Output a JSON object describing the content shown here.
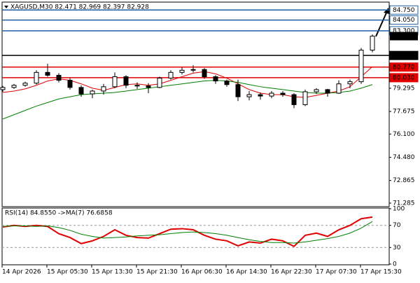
{
  "chart_data": [
    {
      "type": "candlestick",
      "title": "XAGUSD,M30  82.471 82.969 82.397 82.928",
      "categories": [
        "14 Apr 2026",
        null,
        null,
        null,
        "15 Apr 05:30",
        null,
        null,
        null,
        "15 Apr 13:30",
        null,
        null,
        null,
        "15 Apr 21:30",
        null,
        null,
        null,
        "16 Apr 06:30",
        null,
        null,
        null,
        "16 Apr 14:30",
        null,
        null,
        null,
        "16 Apr 22:30",
        null,
        null,
        null,
        "17 Apr 07:30",
        null,
        null,
        null,
        "17 Apr 15:30",
        null
      ],
      "ohlc": [
        [
          79.2,
          79.45,
          79.05,
          79.35
        ],
        [
          79.35,
          79.6,
          79.25,
          79.5
        ],
        [
          79.5,
          79.75,
          79.4,
          79.65
        ],
        [
          79.65,
          80.55,
          79.55,
          80.4
        ],
        [
          80.4,
          81.0,
          80.1,
          80.2
        ],
        [
          80.2,
          80.35,
          79.7,
          79.85
        ],
        [
          79.85,
          80.0,
          79.2,
          79.35
        ],
        [
          79.35,
          79.5,
          78.7,
          78.9
        ],
        [
          78.9,
          79.2,
          78.6,
          79.1
        ],
        [
          79.1,
          79.6,
          78.85,
          79.4
        ],
        [
          79.4,
          80.4,
          79.3,
          80.1
        ],
        [
          80.1,
          80.2,
          79.3,
          79.5
        ],
        [
          79.5,
          79.7,
          79.25,
          79.45
        ],
        [
          79.45,
          79.65,
          78.95,
          79.35
        ],
        [
          79.35,
          80.1,
          79.3,
          80.0
        ],
        [
          80.0,
          80.55,
          79.9,
          80.4
        ],
        [
          80.4,
          80.75,
          80.25,
          80.55
        ],
        [
          80.55,
          80.9,
          80.4,
          80.6
        ],
        [
          80.6,
          80.7,
          79.95,
          80.1
        ],
        [
          80.1,
          80.2,
          79.6,
          79.8
        ],
        [
          79.8,
          79.9,
          79.4,
          79.55
        ],
        [
          79.55,
          79.9,
          78.4,
          78.7
        ],
        [
          78.7,
          79.1,
          78.45,
          78.85
        ],
        [
          78.85,
          79.0,
          78.5,
          78.75
        ],
        [
          78.75,
          79.1,
          78.6,
          78.95
        ],
        [
          78.95,
          79.1,
          78.7,
          78.85
        ],
        [
          78.85,
          78.95,
          77.9,
          78.15
        ],
        [
          78.15,
          79.2,
          78.05,
          79.05
        ],
        [
          79.05,
          79.3,
          78.9,
          79.2
        ],
        [
          79.2,
          79.25,
          78.7,
          78.95
        ],
        [
          78.95,
          79.85,
          78.9,
          79.6
        ],
        [
          79.6,
          79.9,
          79.3,
          79.75
        ],
        [
          79.75,
          82.1,
          79.6,
          81.95
        ],
        [
          81.95,
          83.05,
          81.8,
          82.928
        ]
      ],
      "series": [
        {
          "color": "#e00000",
          "values": [
            79.0,
            79.1,
            79.25,
            79.5,
            79.8,
            79.95,
            79.85,
            79.6,
            79.3,
            79.15,
            79.35,
            79.55,
            79.6,
            79.5,
            79.6,
            79.85,
            80.1,
            80.35,
            80.45,
            80.3,
            80.0,
            79.6,
            79.2,
            78.95,
            78.85,
            78.85,
            78.7,
            78.65,
            78.8,
            78.95,
            79.1,
            79.4,
            80.1,
            80.8
          ]
        },
        {
          "color": "#008000",
          "values": [
            77.15,
            77.45,
            77.75,
            78.05,
            78.3,
            78.55,
            78.7,
            78.85,
            78.9,
            78.95,
            79.0,
            79.1,
            79.2,
            79.3,
            79.4,
            79.5,
            79.6,
            79.7,
            79.8,
            79.85,
            79.8,
            79.7,
            79.55,
            79.4,
            79.3,
            79.2,
            79.1,
            79.0,
            78.95,
            78.95,
            79.0,
            79.1,
            79.3,
            79.55
          ]
        }
      ],
      "ylim": [
        71.04,
        85.3
      ],
      "yticks": [
        79.295,
        77.675,
        {
          "value": 76.1,
          "label": "76.100"
        },
        {
          "value": 74.48,
          "label": "74.480"
        },
        72.865,
        71.285
      ],
      "levels": [
        {
          "value": 84.75,
          "label": "84.750",
          "color": "#1f5fa8"
        },
        {
          "value": 84.05,
          "label": "84.050",
          "color": "#1f5fa8"
        },
        {
          "value": 83.3,
          "label": "83.300",
          "color": "#1f5fa8"
        },
        {
          "value": 81.58,
          "label": "81.580",
          "color": "#000000"
        },
        {
          "value": 80.77,
          "label": "80.770",
          "color": "#e00000"
        },
        {
          "value": 80.03,
          "label": "80.030",
          "color": "#e00000"
        }
      ],
      "last_price": 82.928
    },
    {
      "type": "line",
      "title": "RSI(14) 84.8550 ->MA(7) 76.6858",
      "series": [
        {
          "color": "#e00000",
          "values": [
            67,
            70,
            68,
            70,
            68,
            55,
            48,
            37,
            42,
            50,
            62,
            52,
            48,
            47,
            55,
            63,
            64,
            62,
            52,
            45,
            42,
            33,
            40,
            38,
            45,
            42,
            32,
            52,
            56,
            50,
            62,
            70,
            82,
            85
          ]
        },
        {
          "color": "#008000",
          "values": [
            68,
            69,
            69,
            68,
            69,
            66,
            61,
            54,
            50,
            47,
            48,
            49,
            51,
            52,
            53,
            55,
            57,
            58,
            57,
            55,
            52,
            48,
            44,
            41,
            39,
            39,
            38,
            40,
            43,
            46,
            50,
            56,
            65,
            77
          ]
        }
      ],
      "ylim": [
        0,
        100
      ],
      "yticks": [
        100,
        70,
        30,
        0
      ],
      "levels": [
        70,
        30
      ]
    }
  ]
}
